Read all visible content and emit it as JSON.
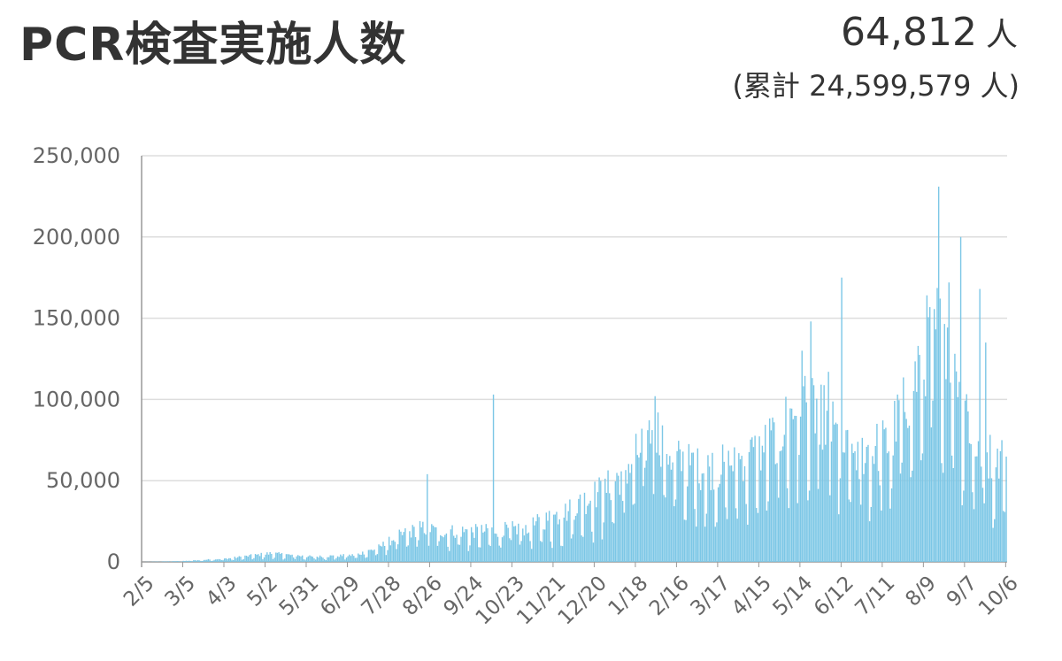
{
  "header": {
    "title": "PCR検査実施人数",
    "today_value": "64,812",
    "today_unit": "人",
    "cumulative_prefix": "(累計",
    "cumulative_value": "24,599,579",
    "cumulative_suffix": "人)"
  },
  "colors": {
    "bar": "#7cc7e6",
    "grid": "#dddddd",
    "axis": "#999999"
  },
  "chart_data": {
    "type": "bar",
    "title": "PCR検査実施人数",
    "xlabel": "",
    "ylabel": "",
    "ylim": [
      0,
      250000
    ],
    "y_ticks": [
      0,
      50000,
      100000,
      150000,
      200000,
      250000
    ],
    "y_tick_labels": [
      "0",
      "50,000",
      "100,000",
      "150,000",
      "200,000",
      "250,000"
    ],
    "x_tick_labels": [
      "2/5",
      "3/5",
      "4/3",
      "5/2",
      "5/31",
      "6/29",
      "7/28",
      "8/26",
      "9/24",
      "10/23",
      "11/21",
      "12/20",
      "1/18",
      "2/16",
      "3/17",
      "4/15",
      "5/14",
      "6/12",
      "7/11",
      "8/9",
      "9/7",
      "10/6"
    ],
    "trend_anchors": [
      {
        "day": 0,
        "value": 0
      },
      {
        "day": 28,
        "value": 500
      },
      {
        "day": 58,
        "value": 2000
      },
      {
        "day": 87,
        "value": 5000
      },
      {
        "day": 116,
        "value": 3000
      },
      {
        "day": 145,
        "value": 4000
      },
      {
        "day": 160,
        "value": 8000
      },
      {
        "day": 174,
        "value": 15000
      },
      {
        "day": 190,
        "value": 20000
      },
      {
        "day": 203,
        "value": 18000
      },
      {
        "day": 232,
        "value": 18000
      },
      {
        "day": 261,
        "value": 20000
      },
      {
        "day": 290,
        "value": 30000
      },
      {
        "day": 305,
        "value": 38000
      },
      {
        "day": 319,
        "value": 45000
      },
      {
        "day": 335,
        "value": 60000
      },
      {
        "day": 348,
        "value": 80000
      },
      {
        "day": 362,
        "value": 60000
      },
      {
        "day": 377,
        "value": 55000
      },
      {
        "day": 392,
        "value": 55000
      },
      {
        "day": 406,
        "value": 60000
      },
      {
        "day": 421,
        "value": 65000
      },
      {
        "day": 435,
        "value": 78000
      },
      {
        "day": 450,
        "value": 95000
      },
      {
        "day": 464,
        "value": 85000
      },
      {
        "day": 479,
        "value": 65000
      },
      {
        "day": 493,
        "value": 65000
      },
      {
        "day": 508,
        "value": 70000
      },
      {
        "day": 522,
        "value": 100000
      },
      {
        "day": 535,
        "value": 130000
      },
      {
        "day": 546,
        "value": 140000
      },
      {
        "day": 555,
        "value": 115000
      },
      {
        "day": 566,
        "value": 70000
      },
      {
        "day": 580,
        "value": 60000
      },
      {
        "day": 588,
        "value": 64812
      }
    ],
    "spikes": [
      {
        "day": 194,
        "value": 54000
      },
      {
        "day": 239,
        "value": 103000
      },
      {
        "day": 349,
        "value": 102000
      },
      {
        "day": 449,
        "value": 130000
      },
      {
        "day": 455,
        "value": 148000
      },
      {
        "day": 467,
        "value": 117000
      },
      {
        "day": 476,
        "value": 175000
      },
      {
        "day": 542,
        "value": 231000
      },
      {
        "day": 549,
        "value": 172000
      },
      {
        "day": 557,
        "value": 200000
      },
      {
        "day": 570,
        "value": 168000
      },
      {
        "day": 574,
        "value": 135000
      }
    ],
    "total_days": 589
  }
}
